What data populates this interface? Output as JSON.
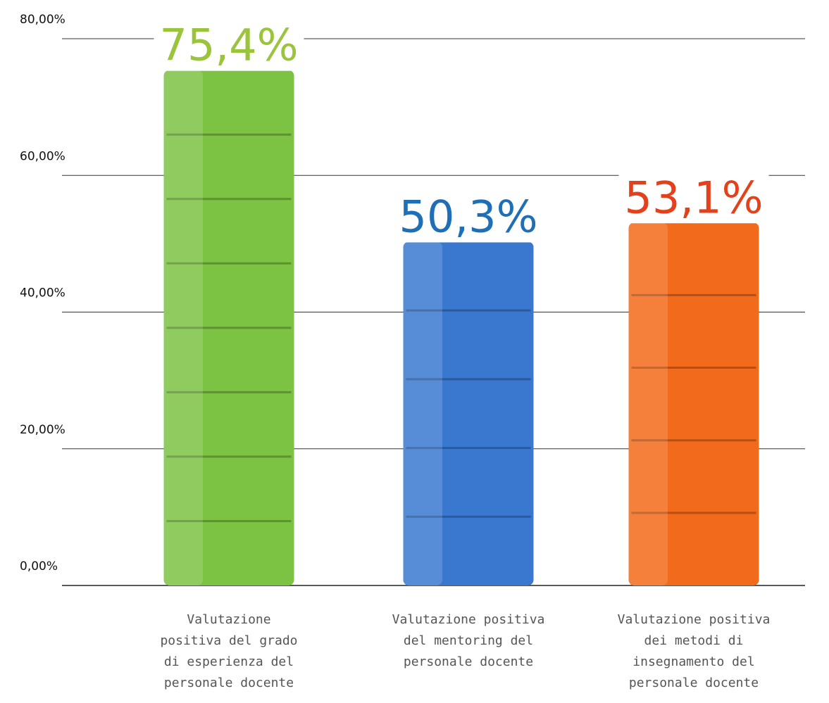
{
  "chart_data": {
    "type": "bar",
    "categories": [
      "Valutazione positiva del grado di esperienza del personale docente",
      "Valutazione positiva del mentoring del personale docente",
      "Valutazione positiva dei metodi di insegnamento del personale docente"
    ],
    "values": [
      75.4,
      50.3,
      53.1
    ],
    "value_labels": [
      "75,4%",
      "50,3%",
      "53,1%"
    ],
    "colors": [
      "#7cc243",
      "#3a78cf",
      "#f26a1b"
    ],
    "label_colors": [
      "#9bc43d",
      "#1f6fb6",
      "#e2411c"
    ],
    "ylim": [
      0,
      80
    ],
    "yticks": [
      {
        "value": 0,
        "label": "0,00%"
      },
      {
        "value": 20,
        "label": "20,00%"
      },
      {
        "value": 40,
        "label": "40,00%"
      },
      {
        "value": 60,
        "label": "60,00%"
      },
      {
        "value": 80,
        "label": "80,00%"
      }
    ],
    "grid": true
  }
}
